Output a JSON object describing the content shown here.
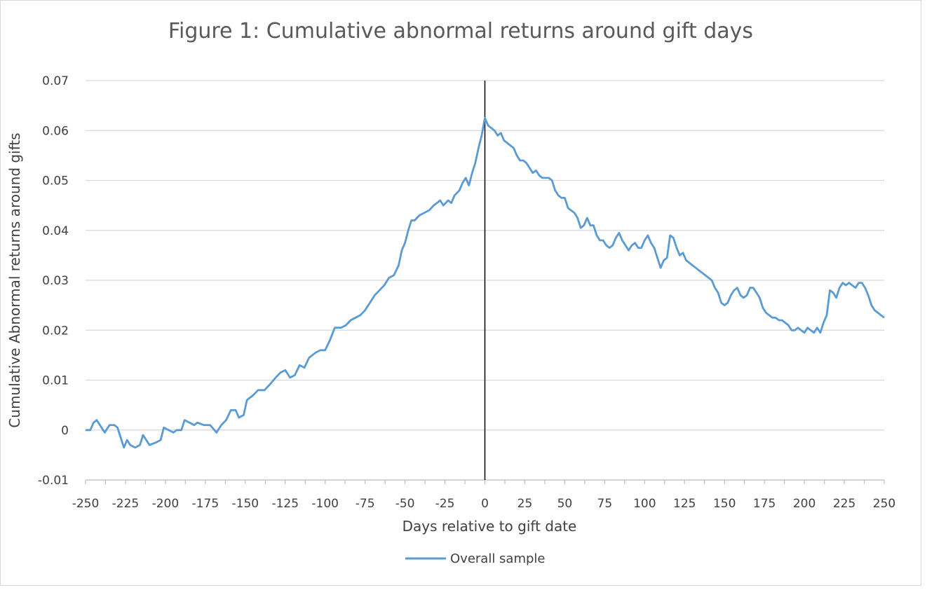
{
  "chart_data": {
    "type": "line",
    "title": "Figure 1:  Cumulative abnormal returns around gift days",
    "xlabel": "Days relative to gift date",
    "ylabel": "Cumulative Abnormal returns around gifts",
    "xlim": [
      -250,
      250
    ],
    "ylim": [
      -0.01,
      0.07
    ],
    "x_ticks": [
      "-250",
      "-225",
      "-200",
      "-175",
      "-150",
      "-125",
      "-100",
      "-75",
      "-50",
      "-25",
      "0",
      "25",
      "50",
      "75",
      "100",
      "125",
      "150",
      "175",
      "200",
      "225",
      "250"
    ],
    "y_ticks": [
      "0.07",
      "0.06",
      "0.05",
      "0.04",
      "0.03",
      "0.02",
      "0.01",
      "0",
      "-0.01"
    ],
    "grid": true,
    "legend_position": "bottom",
    "reference_line_x": 0,
    "series": [
      {
        "name": "Overall sample",
        "color": "#5b9bd5",
        "points": [
          [
            -250,
            0.0
          ],
          [
            -247,
            0.0
          ],
          [
            -245,
            0.0015
          ],
          [
            -243,
            0.002
          ],
          [
            -240,
            0.0005
          ],
          [
            -238,
            -0.0005
          ],
          [
            -235,
            0.001
          ],
          [
            -232,
            0.001
          ],
          [
            -230,
            0.0005
          ],
          [
            -228,
            -0.0015
          ],
          [
            -226,
            -0.0035
          ],
          [
            -224,
            -0.002
          ],
          [
            -222,
            -0.003
          ],
          [
            -219,
            -0.0035
          ],
          [
            -216,
            -0.003
          ],
          [
            -214,
            -0.001
          ],
          [
            -212,
            -0.002
          ],
          [
            -210,
            -0.003
          ],
          [
            -206,
            -0.0025
          ],
          [
            -203,
            -0.002
          ],
          [
            -201,
            0.0005
          ],
          [
            -198,
            0.0
          ],
          [
            -195,
            -0.0005
          ],
          [
            -193,
            0.0
          ],
          [
            -190,
            0.0
          ],
          [
            -188,
            0.002
          ],
          [
            -185,
            0.0015
          ],
          [
            -182,
            0.001
          ],
          [
            -180,
            0.0015
          ],
          [
            -176,
            0.001
          ],
          [
            -172,
            0.001
          ],
          [
            -168,
            -0.0005
          ],
          [
            -165,
            0.001
          ],
          [
            -162,
            0.002
          ],
          [
            -159,
            0.004
          ],
          [
            -156,
            0.004
          ],
          [
            -154,
            0.0025
          ],
          [
            -151,
            0.003
          ],
          [
            -149,
            0.006
          ],
          [
            -145,
            0.007
          ],
          [
            -142,
            0.008
          ],
          [
            -138,
            0.008
          ],
          [
            -135,
            0.009
          ],
          [
            -131,
            0.0105
          ],
          [
            -128,
            0.0115
          ],
          [
            -125,
            0.012
          ],
          [
            -122,
            0.0105
          ],
          [
            -119,
            0.011
          ],
          [
            -116,
            0.013
          ],
          [
            -113,
            0.0125
          ],
          [
            -110,
            0.0145
          ],
          [
            -106,
            0.0155
          ],
          [
            -103,
            0.016
          ],
          [
            -100,
            0.016
          ],
          [
            -97,
            0.018
          ],
          [
            -94,
            0.0205
          ],
          [
            -90,
            0.0205
          ],
          [
            -87,
            0.021
          ],
          [
            -84,
            0.022
          ],
          [
            -81,
            0.0225
          ],
          [
            -78,
            0.023
          ],
          [
            -75,
            0.024
          ],
          [
            -72,
            0.0255
          ],
          [
            -69,
            0.027
          ],
          [
            -66,
            0.028
          ],
          [
            -63,
            0.029
          ],
          [
            -60,
            0.0305
          ],
          [
            -57,
            0.031
          ],
          [
            -54,
            0.033
          ],
          [
            -52,
            0.036
          ],
          [
            -50,
            0.0375
          ],
          [
            -48,
            0.04
          ],
          [
            -46,
            0.042
          ],
          [
            -44,
            0.042
          ],
          [
            -41,
            0.043
          ],
          [
            -38,
            0.0435
          ],
          [
            -35,
            0.044
          ],
          [
            -32,
            0.045
          ],
          [
            -30,
            0.0455
          ],
          [
            -28,
            0.046
          ],
          [
            -26,
            0.045
          ],
          [
            -23,
            0.046
          ],
          [
            -21,
            0.0455
          ],
          [
            -19,
            0.047
          ],
          [
            -16,
            0.048
          ],
          [
            -14,
            0.0495
          ],
          [
            -12,
            0.0505
          ],
          [
            -10,
            0.049
          ],
          [
            -8,
            0.0515
          ],
          [
            -6,
            0.0535
          ],
          [
            -4,
            0.0565
          ],
          [
            -2,
            0.059
          ],
          [
            0,
            0.0625
          ],
          [
            2,
            0.061
          ],
          [
            4,
            0.0605
          ],
          [
            6,
            0.06
          ],
          [
            8,
            0.059
          ],
          [
            10,
            0.0595
          ],
          [
            12,
            0.058
          ],
          [
            14,
            0.0575
          ],
          [
            16,
            0.057
          ],
          [
            18,
            0.0565
          ],
          [
            20,
            0.055
          ],
          [
            22,
            0.054
          ],
          [
            24,
            0.054
          ],
          [
            26,
            0.0535
          ],
          [
            28,
            0.0525
          ],
          [
            30,
            0.0515
          ],
          [
            32,
            0.052
          ],
          [
            34,
            0.051
          ],
          [
            36,
            0.0505
          ],
          [
            38,
            0.0505
          ],
          [
            40,
            0.0505
          ],
          [
            42,
            0.05
          ],
          [
            44,
            0.048
          ],
          [
            46,
            0.047
          ],
          [
            48,
            0.0465
          ],
          [
            50,
            0.0465
          ],
          [
            52,
            0.0445
          ],
          [
            54,
            0.044
          ],
          [
            56,
            0.0435
          ],
          [
            58,
            0.0425
          ],
          [
            60,
            0.0405
          ],
          [
            62,
            0.041
          ],
          [
            64,
            0.0425
          ],
          [
            66,
            0.041
          ],
          [
            68,
            0.041
          ],
          [
            70,
            0.039
          ],
          [
            72,
            0.038
          ],
          [
            74,
            0.038
          ],
          [
            76,
            0.037
          ],
          [
            78,
            0.0365
          ],
          [
            80,
            0.037
          ],
          [
            82,
            0.0385
          ],
          [
            84,
            0.0395
          ],
          [
            86,
            0.038
          ],
          [
            88,
            0.037
          ],
          [
            90,
            0.036
          ],
          [
            92,
            0.037
          ],
          [
            94,
            0.0375
          ],
          [
            96,
            0.0365
          ],
          [
            98,
            0.0365
          ],
          [
            100,
            0.038
          ],
          [
            102,
            0.039
          ],
          [
            104,
            0.0375
          ],
          [
            106,
            0.0365
          ],
          [
            108,
            0.0345
          ],
          [
            110,
            0.0325
          ],
          [
            112,
            0.034
          ],
          [
            114,
            0.0345
          ],
          [
            116,
            0.039
          ],
          [
            118,
            0.0385
          ],
          [
            120,
            0.0365
          ],
          [
            122,
            0.035
          ],
          [
            124,
            0.0355
          ],
          [
            126,
            0.034
          ],
          [
            128,
            0.0335
          ],
          [
            130,
            0.033
          ],
          [
            132,
            0.0325
          ],
          [
            134,
            0.032
          ],
          [
            136,
            0.0315
          ],
          [
            138,
            0.031
          ],
          [
            140,
            0.0305
          ],
          [
            142,
            0.03
          ],
          [
            144,
            0.0285
          ],
          [
            146,
            0.0275
          ],
          [
            148,
            0.0255
          ],
          [
            150,
            0.025
          ],
          [
            152,
            0.0255
          ],
          [
            154,
            0.027
          ],
          [
            156,
            0.028
          ],
          [
            158,
            0.0285
          ],
          [
            160,
            0.027
          ],
          [
            162,
            0.0265
          ],
          [
            164,
            0.027
          ],
          [
            166,
            0.0285
          ],
          [
            168,
            0.0285
          ],
          [
            170,
            0.0275
          ],
          [
            172,
            0.0265
          ],
          [
            174,
            0.0245
          ],
          [
            176,
            0.0235
          ],
          [
            178,
            0.023
          ],
          [
            180,
            0.0225
          ],
          [
            182,
            0.0225
          ],
          [
            184,
            0.022
          ],
          [
            186,
            0.022
          ],
          [
            188,
            0.0215
          ],
          [
            190,
            0.021
          ],
          [
            192,
            0.02
          ],
          [
            194,
            0.02
          ],
          [
            196,
            0.0205
          ],
          [
            198,
            0.02
          ],
          [
            200,
            0.0195
          ],
          [
            202,
            0.0205
          ],
          [
            204,
            0.02
          ],
          [
            206,
            0.0195
          ],
          [
            208,
            0.0205
          ],
          [
            210,
            0.0195
          ],
          [
            212,
            0.0215
          ],
          [
            214,
            0.023
          ],
          [
            216,
            0.028
          ],
          [
            218,
            0.0275
          ],
          [
            220,
            0.0265
          ],
          [
            222,
            0.0285
          ],
          [
            224,
            0.0295
          ],
          [
            226,
            0.029
          ],
          [
            228,
            0.0295
          ],
          [
            230,
            0.029
          ],
          [
            232,
            0.0285
          ],
          [
            234,
            0.0295
          ],
          [
            236,
            0.0295
          ],
          [
            238,
            0.0285
          ],
          [
            240,
            0.027
          ],
          [
            242,
            0.025
          ],
          [
            244,
            0.024
          ],
          [
            246,
            0.0235
          ],
          [
            248,
            0.023
          ],
          [
            250,
            0.0225
          ]
        ]
      }
    ]
  }
}
